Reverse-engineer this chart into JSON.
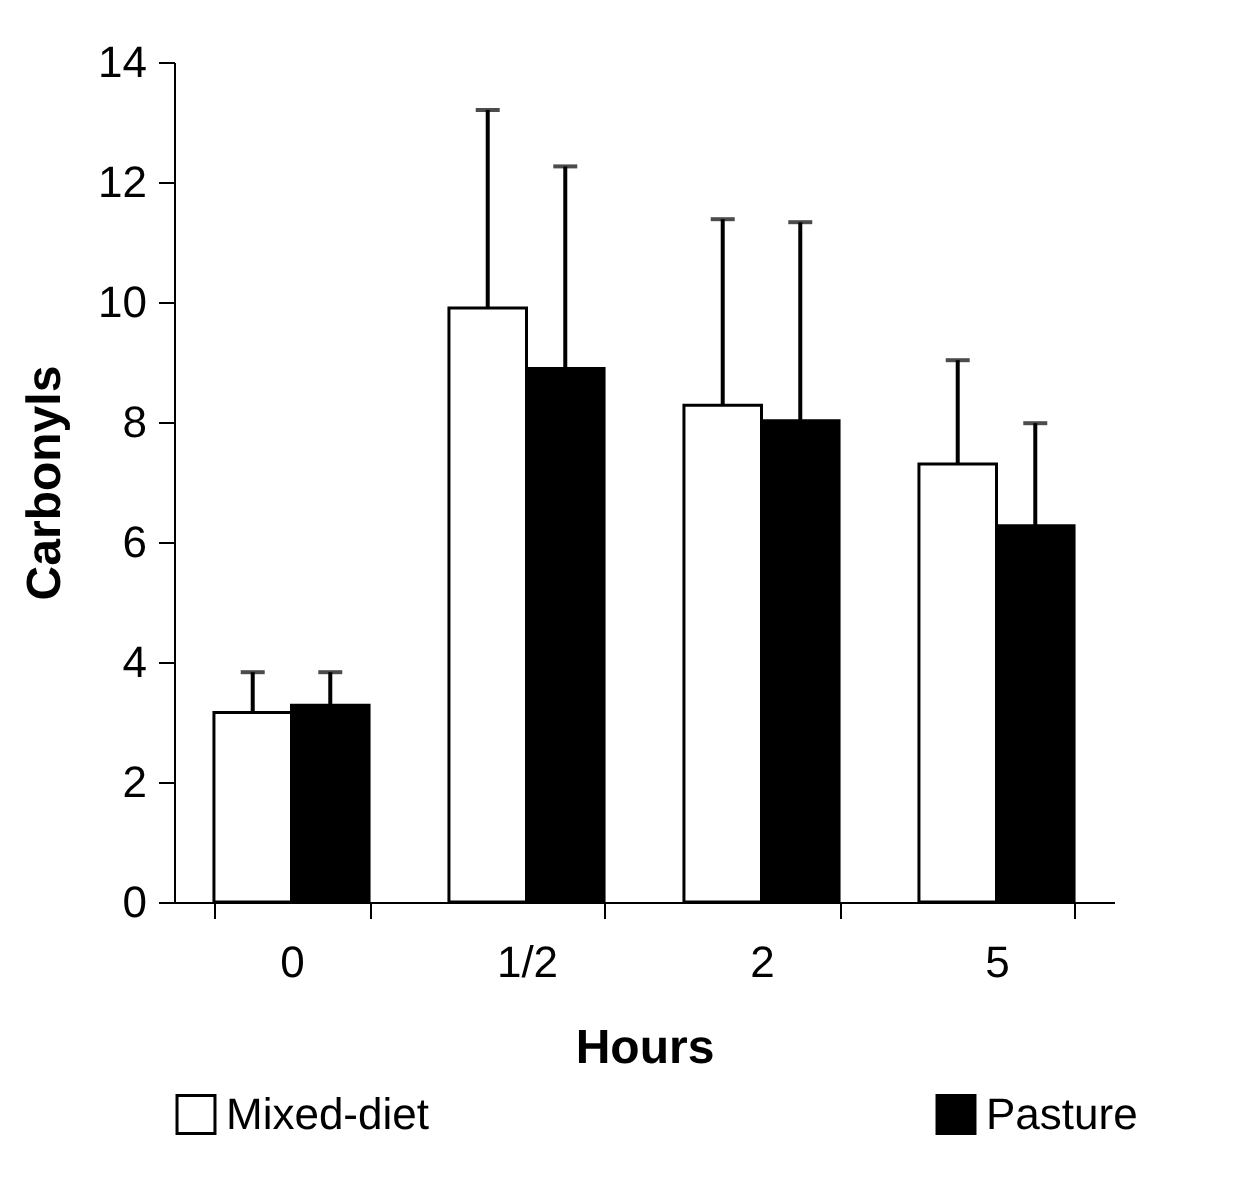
{
  "chart_data": {
    "type": "bar",
    "xlabel": "Hours",
    "ylabel": "Carbonyls",
    "categories": [
      "0",
      "1/2",
      "2",
      "5"
    ],
    "series": [
      {
        "name": "Mixed-diet",
        "color": "#ffffff",
        "values": [
          3.16,
          9.9,
          8.28,
          7.3
        ],
        "errors": [
          [
            3.16,
            3.83
          ],
          [
            9.9,
            13.2
          ],
          [
            8.28,
            11.38
          ],
          [
            7.3,
            9.03
          ]
        ]
      },
      {
        "name": "Pasture",
        "color": "#000000",
        "values": [
          3.28,
          8.89,
          8.02,
          6.27
        ],
        "errors": [
          [
            3.28,
            3.83
          ],
          [
            8.89,
            12.26
          ],
          [
            8.02,
            11.33
          ],
          [
            6.27,
            7.98
          ]
        ]
      }
    ],
    "ylim": [
      0,
      14
    ],
    "yticks": [
      0,
      2,
      4,
      6,
      8,
      10,
      12,
      14
    ],
    "grid": false,
    "legend": "bottom"
  }
}
